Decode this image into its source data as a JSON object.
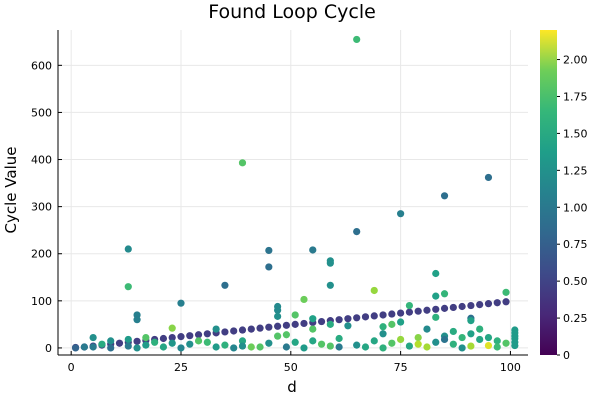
{
  "chart_data": {
    "type": "scatter",
    "title": "Found Loop Cycle",
    "xlabel": "d",
    "ylabel": "Cycle Value",
    "xlim": [
      -3,
      104
    ],
    "ylim": [
      -15,
      675
    ],
    "x_ticks": [
      0,
      25,
      50,
      75,
      100
    ],
    "y_ticks": [
      0,
      100,
      200,
      300,
      400,
      500,
      600
    ],
    "grid": true,
    "legend": "none",
    "colorbar": {
      "range": [
        0,
        2.2
      ],
      "ticks": [
        "0",
        "0.25",
        "0.50",
        "0.75",
        "1.00",
        "1.25",
        "1.50",
        "1.75",
        "2.00"
      ],
      "colormap": "viridis",
      "position": "right"
    },
    "points": [
      {
        "x": 1,
        "y": 1,
        "c": 0.4
      },
      {
        "x": 3,
        "y": 2,
        "c": 0.4
      },
      {
        "x": 5,
        "y": 4,
        "c": 0.4
      },
      {
        "x": 7,
        "y": 6,
        "c": 0.4
      },
      {
        "x": 9,
        "y": 8,
        "c": 0.4
      },
      {
        "x": 11,
        "y": 10,
        "c": 0.4
      },
      {
        "x": 13,
        "y": 12,
        "c": 0.4
      },
      {
        "x": 15,
        "y": 14,
        "c": 0.4
      },
      {
        "x": 17,
        "y": 16,
        "c": 0.4
      },
      {
        "x": 19,
        "y": 18,
        "c": 0.4
      },
      {
        "x": 21,
        "y": 20,
        "c": 0.4
      },
      {
        "x": 23,
        "y": 22,
        "c": 0.4
      },
      {
        "x": 25,
        "y": 24,
        "c": 0.4
      },
      {
        "x": 27,
        "y": 26,
        "c": 0.4
      },
      {
        "x": 29,
        "y": 28,
        "c": 0.4
      },
      {
        "x": 31,
        "y": 30,
        "c": 0.4
      },
      {
        "x": 33,
        "y": 32,
        "c": 0.4
      },
      {
        "x": 35,
        "y": 34,
        "c": 0.4
      },
      {
        "x": 37,
        "y": 36,
        "c": 0.4
      },
      {
        "x": 39,
        "y": 38,
        "c": 0.4
      },
      {
        "x": 41,
        "y": 40,
        "c": 0.4
      },
      {
        "x": 43,
        "y": 42,
        "c": 0.4
      },
      {
        "x": 45,
        "y": 44,
        "c": 0.4
      },
      {
        "x": 47,
        "y": 46,
        "c": 0.4
      },
      {
        "x": 49,
        "y": 48,
        "c": 0.4
      },
      {
        "x": 51,
        "y": 50,
        "c": 0.4
      },
      {
        "x": 53,
        "y": 52,
        "c": 0.4
      },
      {
        "x": 55,
        "y": 54,
        "c": 0.4
      },
      {
        "x": 57,
        "y": 56,
        "c": 0.4
      },
      {
        "x": 59,
        "y": 58,
        "c": 0.4
      },
      {
        "x": 61,
        "y": 60,
        "c": 0.4
      },
      {
        "x": 63,
        "y": 62,
        "c": 0.4
      },
      {
        "x": 65,
        "y": 64,
        "c": 0.4
      },
      {
        "x": 67,
        "y": 66,
        "c": 0.4
      },
      {
        "x": 69,
        "y": 68,
        "c": 0.4
      },
      {
        "x": 71,
        "y": 70,
        "c": 0.4
      },
      {
        "x": 73,
        "y": 72,
        "c": 0.4
      },
      {
        "x": 75,
        "y": 74,
        "c": 0.4
      },
      {
        "x": 77,
        "y": 76,
        "c": 0.4
      },
      {
        "x": 79,
        "y": 78,
        "c": 0.4
      },
      {
        "x": 81,
        "y": 80,
        "c": 0.4
      },
      {
        "x": 83,
        "y": 82,
        "c": 0.4
      },
      {
        "x": 85,
        "y": 84,
        "c": 0.4
      },
      {
        "x": 87,
        "y": 86,
        "c": 0.4
      },
      {
        "x": 89,
        "y": 88,
        "c": 0.4
      },
      {
        "x": 91,
        "y": 90,
        "c": 0.4
      },
      {
        "x": 93,
        "y": 92,
        "c": 0.4
      },
      {
        "x": 95,
        "y": 94,
        "c": 0.4
      },
      {
        "x": 97,
        "y": 96,
        "c": 0.4
      },
      {
        "x": 99,
        "y": 98,
        "c": 0.4
      },
      {
        "x": 65,
        "y": 655,
        "c": 1.5
      },
      {
        "x": 39,
        "y": 393,
        "c": 1.6
      },
      {
        "x": 95,
        "y": 362,
        "c": 0.8
      },
      {
        "x": 85,
        "y": 323,
        "c": 0.8
      },
      {
        "x": 75,
        "y": 285,
        "c": 0.95
      },
      {
        "x": 65,
        "y": 247,
        "c": 0.8
      },
      {
        "x": 13,
        "y": 210,
        "c": 1.05
      },
      {
        "x": 45,
        "y": 207,
        "c": 0.85
      },
      {
        "x": 55,
        "y": 208,
        "c": 0.9
      },
      {
        "x": 59,
        "y": 185,
        "c": 1.1
      },
      {
        "x": 59,
        "y": 180,
        "c": 1.1
      },
      {
        "x": 45,
        "y": 172,
        "c": 0.8
      },
      {
        "x": 83,
        "y": 158,
        "c": 1.25
      },
      {
        "x": 35,
        "y": 133,
        "c": 0.8
      },
      {
        "x": 59,
        "y": 133,
        "c": 1.1
      },
      {
        "x": 13,
        "y": 130,
        "c": 1.5
      },
      {
        "x": 69,
        "y": 122,
        "c": 1.85
      },
      {
        "x": 99,
        "y": 118,
        "c": 1.5
      },
      {
        "x": 85,
        "y": 115,
        "c": 1.45
      },
      {
        "x": 83,
        "y": 110,
        "c": 1.25
      },
      {
        "x": 53,
        "y": 103,
        "c": 1.7
      },
      {
        "x": 25,
        "y": 95,
        "c": 0.95
      },
      {
        "x": 77,
        "y": 90,
        "c": 1.45
      },
      {
        "x": 47,
        "y": 88,
        "c": 1.05
      },
      {
        "x": 47,
        "y": 80,
        "c": 1.05
      },
      {
        "x": 15,
        "y": 70,
        "c": 0.95
      },
      {
        "x": 51,
        "y": 70,
        "c": 1.6
      },
      {
        "x": 47,
        "y": 67,
        "c": 1.1
      },
      {
        "x": 83,
        "y": 65,
        "c": 1.4
      },
      {
        "x": 91,
        "y": 63,
        "c": 0.8
      },
      {
        "x": 15,
        "y": 60,
        "c": 0.95
      },
      {
        "x": 55,
        "y": 62,
        "c": 1.25
      },
      {
        "x": 91,
        "y": 58,
        "c": 1.25
      },
      {
        "x": 75,
        "y": 55,
        "c": 1.25
      },
      {
        "x": 73,
        "y": 50,
        "c": 1.6
      },
      {
        "x": 59,
        "y": 50,
        "c": 1.35
      },
      {
        "x": 63,
        "y": 47,
        "c": 1.1
      },
      {
        "x": 71,
        "y": 45,
        "c": 1.4
      },
      {
        "x": 23,
        "y": 42,
        "c": 1.8
      },
      {
        "x": 33,
        "y": 40,
        "c": 1.1
      },
      {
        "x": 55,
        "y": 40,
        "c": 1.6
      },
      {
        "x": 81,
        "y": 40,
        "c": 1.05
      },
      {
        "x": 93,
        "y": 40,
        "c": 1.4
      },
      {
        "x": 101,
        "y": 38,
        "c": 1.2
      },
      {
        "x": 87,
        "y": 35,
        "c": 1.35
      },
      {
        "x": 101,
        "y": 32,
        "c": 1.2
      },
      {
        "x": 71,
        "y": 30,
        "c": 1.1
      },
      {
        "x": 91,
        "y": 30,
        "c": 1.25
      },
      {
        "x": 49,
        "y": 28,
        "c": 1.6
      },
      {
        "x": 47,
        "y": 25,
        "c": 1.6
      },
      {
        "x": 85,
        "y": 25,
        "c": 1.1
      },
      {
        "x": 101,
        "y": 25,
        "c": 1.2
      },
      {
        "x": 5,
        "y": 22,
        "c": 1.1
      },
      {
        "x": 17,
        "y": 22,
        "c": 1.6
      },
      {
        "x": 79,
        "y": 22,
        "c": 1.8
      },
      {
        "x": 89,
        "y": 22,
        "c": 1.45
      },
      {
        "x": 95,
        "y": 22,
        "c": 1.3
      },
      {
        "x": 61,
        "y": 20,
        "c": 1.35
      },
      {
        "x": 101,
        "y": 20,
        "c": 1.2
      },
      {
        "x": 13,
        "y": 18,
        "c": 1.2
      },
      {
        "x": 75,
        "y": 18,
        "c": 1.85
      },
      {
        "x": 85,
        "y": 18,
        "c": 0.85
      },
      {
        "x": 93,
        "y": 18,
        "c": 1.3
      },
      {
        "x": 9,
        "y": 15,
        "c": 1.1
      },
      {
        "x": 29,
        "y": 15,
        "c": 1.6
      },
      {
        "x": 39,
        "y": 15,
        "c": 1.3
      },
      {
        "x": 55,
        "y": 15,
        "c": 1.3
      },
      {
        "x": 69,
        "y": 15,
        "c": 1.3
      },
      {
        "x": 97,
        "y": 15,
        "c": 1.4
      },
      {
        "x": 19,
        "y": 12,
        "c": 1.4
      },
      {
        "x": 31,
        "y": 12,
        "c": 1.5
      },
      {
        "x": 51,
        "y": 12,
        "c": 1.3
      },
      {
        "x": 83,
        "y": 12,
        "c": 1.1
      },
      {
        "x": 101,
        "y": 12,
        "c": 1.2
      },
      {
        "x": 23,
        "y": 10,
        "c": 1.15
      },
      {
        "x": 45,
        "y": 10,
        "c": 1.1
      },
      {
        "x": 73,
        "y": 10,
        "c": 1.6
      },
      {
        "x": 99,
        "y": 10,
        "c": 1.6
      },
      {
        "x": 7,
        "y": 8,
        "c": 1.35
      },
      {
        "x": 27,
        "y": 8,
        "c": 1.1
      },
      {
        "x": 57,
        "y": 8,
        "c": 1.6
      },
      {
        "x": 79,
        "y": 8,
        "c": 1.95
      },
      {
        "x": 87,
        "y": 8,
        "c": 1.4
      },
      {
        "x": 17,
        "y": 6,
        "c": 1.2
      },
      {
        "x": 35,
        "y": 6,
        "c": 1.4
      },
      {
        "x": 65,
        "y": 6,
        "c": 1.1
      },
      {
        "x": 95,
        "y": 5,
        "c": 2.1
      },
      {
        "x": 101,
        "y": 5,
        "c": 1.2
      },
      {
        "x": 13,
        "y": 4,
        "c": 0.9
      },
      {
        "x": 39,
        "y": 4,
        "c": 1.1
      },
      {
        "x": 59,
        "y": 4,
        "c": 1.6
      },
      {
        "x": 77,
        "y": 4,
        "c": 1.3
      },
      {
        "x": 91,
        "y": 4,
        "c": 1.9
      },
      {
        "x": 3,
        "y": 2,
        "c": 0.9
      },
      {
        "x": 5,
        "y": 2,
        "c": 0.9
      },
      {
        "x": 21,
        "y": 2,
        "c": 1.3
      },
      {
        "x": 33,
        "y": 2,
        "c": 1.2
      },
      {
        "x": 41,
        "y": 2,
        "c": 1.7
      },
      {
        "x": 43,
        "y": 2,
        "c": 1.6
      },
      {
        "x": 49,
        "y": 2,
        "c": 0.9
      },
      {
        "x": 61,
        "y": 2,
        "c": 0.9
      },
      {
        "x": 67,
        "y": 2,
        "c": 1.3
      },
      {
        "x": 81,
        "y": 2,
        "c": 1.9
      },
      {
        "x": 97,
        "y": 2,
        "c": 1.5
      },
      {
        "x": 1,
        "y": 0,
        "c": 0.7
      },
      {
        "x": 9,
        "y": 0,
        "c": 0.8
      },
      {
        "x": 15,
        "y": 0,
        "c": 1.1
      },
      {
        "x": 25,
        "y": 0,
        "c": 1.0
      },
      {
        "x": 37,
        "y": 0,
        "c": 1.0
      },
      {
        "x": 53,
        "y": 0,
        "c": 1.2
      },
      {
        "x": 71,
        "y": 0,
        "c": 1.4
      },
      {
        "x": 89,
        "y": 0,
        "c": 1.1
      }
    ]
  }
}
